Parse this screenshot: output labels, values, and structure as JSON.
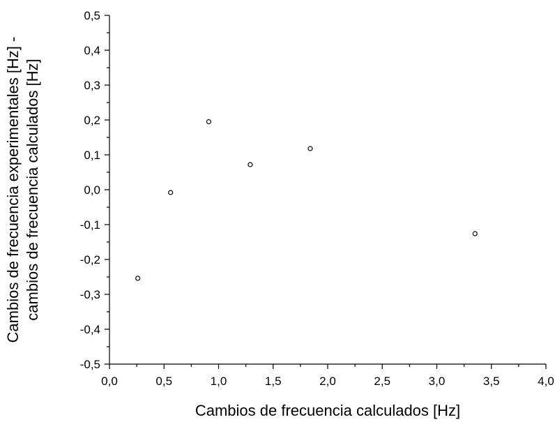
{
  "chart_data": {
    "type": "scatter",
    "title": "",
    "xlabel": "Cambios de frecuencia calculados [Hz]",
    "ylabel_lines": [
      "Cambios de frecuencia experimentales [Hz] -",
      "cambios de frecuencia calculados [Hz]"
    ],
    "xlim": [
      0.0,
      4.0
    ],
    "ylim": [
      -0.5,
      0.5
    ],
    "x_ticks": [
      0.0,
      0.5,
      1.0,
      1.5,
      2.0,
      2.5,
      3.0,
      3.5,
      4.0
    ],
    "x_tick_labels": [
      "0,0",
      "0,5",
      "1,0",
      "1,5",
      "2,0",
      "2,5",
      "3,0",
      "3,5",
      "4,0"
    ],
    "y_ticks": [
      0.5,
      0.4,
      0.3,
      0.2,
      0.1,
      0.0,
      -0.1,
      -0.2,
      -0.3,
      -0.4,
      -0.5
    ],
    "y_tick_labels": [
      "0,5",
      "0,4",
      "0,3",
      "0,2",
      "0,1",
      "0,0",
      "-0,1",
      "-0,2",
      "-0,3",
      "-0,4",
      "-0,5"
    ],
    "grid": false,
    "legend": "none",
    "marker": "open-circle",
    "points": [
      {
        "x": 0.26,
        "y": -0.254
      },
      {
        "x": 0.56,
        "y": -0.008
      },
      {
        "x": 0.91,
        "y": 0.195
      },
      {
        "x": 1.29,
        "y": 0.072
      },
      {
        "x": 1.84,
        "y": 0.118
      },
      {
        "x": 3.35,
        "y": -0.126
      }
    ]
  }
}
